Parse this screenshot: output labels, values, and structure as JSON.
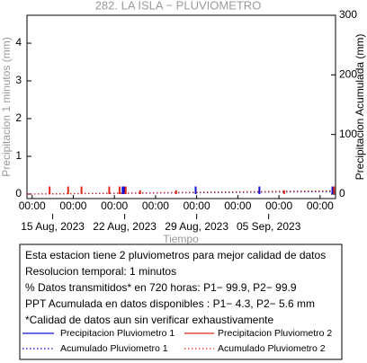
{
  "chart_data": {
    "type": "bar",
    "title": "282. LA ISLA − PLUVIOMETRO",
    "y_label": "Precipitacion 1 minutos (mm)",
    "y2_label": "Precipitacion Acumulada (mm)",
    "x_label": "Tiempo",
    "xlim": [
      0,
      30
    ],
    "xticks": [
      {
        "value": 0.5,
        "label": "00:00"
      },
      {
        "value": 4.5,
        "label": "00:00"
      },
      {
        "value": 8.5,
        "label": "00:00"
      },
      {
        "value": 12.5,
        "label": "00:00"
      },
      {
        "value": 16.5,
        "label": "00:00"
      },
      {
        "value": 20.5,
        "label": "00:00"
      },
      {
        "value": 24.5,
        "label": "00:00"
      },
      {
        "value": 28.5,
        "label": "00:00"
      }
    ],
    "xdate_ticks": [
      {
        "value": 2.5,
        "label": "15 Aug, 2023"
      },
      {
        "value": 9.5,
        "label": "22 Aug, 2023"
      },
      {
        "value": 16.5,
        "label": "29 Aug, 2023"
      },
      {
        "value": 23.5,
        "label": "05 Sep, 2023"
      }
    ],
    "ylim": [
      -0.12,
      4.74
    ],
    "yticks": [
      0,
      1,
      2,
      3,
      4
    ],
    "y2lim": [
      -7.5,
      300
    ],
    "y2ticks": [
      0,
      100,
      200,
      300
    ],
    "series": [
      {
        "name": "Precipitacion Pluviometro 1",
        "color": "#1010d0",
        "style": "bar",
        "x": [
          9.3,
          9.45,
          16.4,
          22.6,
          29.7
        ],
        "values": [
          0.2,
          0.2,
          0.2,
          0.2,
          0.2
        ]
      },
      {
        "name": "Precipitacion Pluviometro 2",
        "color": "#e02818",
        "style": "bar",
        "x": [
          2.2,
          4.0,
          5.3,
          8.0,
          9.0,
          9.6,
          11.0,
          14.5,
          25.0,
          29.85
        ],
        "values": [
          0.2,
          0.2,
          0.2,
          0.2,
          0.2,
          0.2,
          0.1,
          0.1,
          0.1,
          0.2
        ]
      },
      {
        "name": "Acumulado Pluviometro 1",
        "color": "#1010d0",
        "style": "dotted",
        "axis": "y2",
        "x": [
          0,
          30
        ],
        "values": [
          0,
          4.3
        ]
      },
      {
        "name": "Acumulado Pluviometro 2",
        "color": "#e02818",
        "style": "dotted",
        "axis": "y2",
        "x": [
          0,
          30
        ],
        "values": [
          0,
          5.6
        ]
      }
    ],
    "notes": [
      "Esta estacion tiene 2 pluviometros para mejor calidad de datos",
      "Resolucion temporal: 1 minutos",
      "% Datos transmitidos* en 720 horas: P1− 99.9, P2− 99.9",
      "PPT Acumulada en datos disponibles : P1−  4.3, P2−  5.6 mm",
      "*Calidad de datos aun sin verificar exhaustivamente"
    ]
  }
}
